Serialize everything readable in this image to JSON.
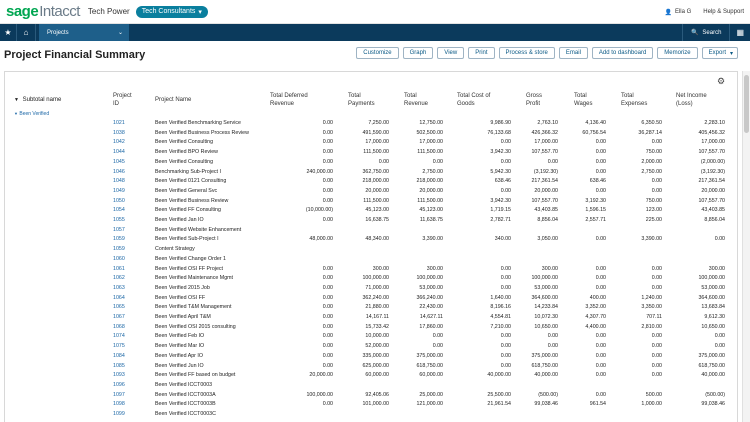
{
  "app": {
    "brand_main": "sage",
    "brand_sub": "Intacct",
    "company": "Tech Power",
    "entity": "Tech Consultants",
    "user": "Ella G",
    "help": "Help & Support"
  },
  "nav": {
    "module": "Projects",
    "search": "Search"
  },
  "page": {
    "title": "Project Financial Summary"
  },
  "toolbar": {
    "customize": "Customize",
    "graph": "Graph",
    "view": "View",
    "print": "Print",
    "process_store": "Process & store",
    "email": "Email",
    "add_dashboard": "Add to dashboard",
    "memorize": "Memorize",
    "export": "Export"
  },
  "report": {
    "subtotal_label": "Subtotal name",
    "group": "Been Verified",
    "headers": {
      "project_id": [
        "Project",
        "ID"
      ],
      "project_name": [
        "Project Name"
      ],
      "total_deferred_revenue": [
        "Total Deferred",
        "Revenue"
      ],
      "total_payments": [
        "Total",
        "Payments"
      ],
      "total_revenue": [
        "Total",
        "Revenue"
      ],
      "total_cost_of_goods": [
        "Total Cost of",
        "Goods"
      ],
      "gross_profit": [
        "Gross",
        "Profit"
      ],
      "total_wages": [
        "Total",
        "Wages"
      ],
      "total_expenses": [
        "Total",
        "Expenses"
      ],
      "net_income": [
        "Net Income",
        "(Loss)"
      ]
    },
    "rows": [
      [
        "1021",
        "Been Verified Benchmarking Service",
        "0.00",
        "7,250.00",
        "12,750.00",
        "9,986.90",
        "2,763.10",
        "4,136.40",
        "6,350.50",
        "2,283.10"
      ],
      [
        "1038",
        "Been Verified Business Process Review",
        "0.00",
        "491,590.00",
        "502,500.00",
        "76,133.68",
        "426,366.32",
        "60,756.54",
        "36,287.14",
        "405,456.32"
      ],
      [
        "1042",
        "Been Verified Consulting",
        "0.00",
        "17,000.00",
        "17,000.00",
        "0.00",
        "17,000.00",
        "0.00",
        "0.00",
        "17,000.00"
      ],
      [
        "1044",
        "Been Verified BPO Review",
        "0.00",
        "111,500.00",
        "111,500.00",
        "3,942.30",
        "107,557.70",
        "0.00",
        "750.00",
        "107,557.70"
      ],
      [
        "1045",
        "Been Verified Consulting",
        "0.00",
        "0.00",
        "0.00",
        "0.00",
        "0.00",
        "0.00",
        "2,000.00",
        "(2,000.00)"
      ],
      [
        "1046",
        "Benchmarking Sub-Project I",
        "240,000.00",
        "362,750.00",
        "2,750.00",
        "5,942.30",
        "(3,192.30)",
        "0.00",
        "2,750.00",
        "(3,192.30)"
      ],
      [
        "1048",
        "Been Verified 0121 Consulting",
        "0.00",
        "218,000.00",
        "218,000.00",
        "638.46",
        "217,361.54",
        "638.46",
        "0.00",
        "217,361.54"
      ],
      [
        "1049",
        "Been Verified General Svc",
        "0.00",
        "20,000.00",
        "20,000.00",
        "0.00",
        "20,000.00",
        "0.00",
        "0.00",
        "20,000.00"
      ],
      [
        "1050",
        "Been Verified Business Review",
        "0.00",
        "111,500.00",
        "111,500.00",
        "3,942.30",
        "107,557.70",
        "3,192.30",
        "750.00",
        "107,557.70"
      ],
      [
        "1054",
        "Been Verified FF Consulting",
        "(10,000.00)",
        "45,123.00",
        "45,123.00",
        "1,719.15",
        "43,403.85",
        "1,596.15",
        "123.00",
        "43,403.85"
      ],
      [
        "1055",
        "Been Verified Jan IO",
        "0.00",
        "16,638.75",
        "11,638.75",
        "2,782.71",
        "8,856.04",
        "2,557.71",
        "225.00",
        "8,856.04"
      ],
      [
        "1057",
        "Been Verified Website Enhancement",
        "",
        "",
        "",
        "",
        "",
        "",
        "",
        ""
      ],
      [
        "1059",
        "Been Verified Sub-Project I",
        "48,000.00",
        "48,340.00",
        "3,390.00",
        "340.00",
        "3,050.00",
        "0.00",
        "3,390.00",
        "0.00"
      ],
      [
        "1059",
        "Content Strategy",
        "",
        "",
        "",
        "",
        "",
        "",
        "",
        ""
      ],
      [
        "1060",
        "Been Verified Change Order 1",
        "",
        "",
        "",
        "",
        "",
        "",
        "",
        ""
      ],
      [
        "1061",
        "Been Verified OSI FF Project",
        "0.00",
        "300.00",
        "300.00",
        "0.00",
        "300.00",
        "0.00",
        "0.00",
        "300.00"
      ],
      [
        "1062",
        "Been Verified Maintenance Mgmt",
        "0.00",
        "100,000.00",
        "100,000.00",
        "0.00",
        "100,000.00",
        "0.00",
        "0.00",
        "100,000.00"
      ],
      [
        "1063",
        "Been Verified 2015 Job",
        "0.00",
        "71,000.00",
        "53,000.00",
        "0.00",
        "53,000.00",
        "0.00",
        "0.00",
        "53,000.00"
      ],
      [
        "1064",
        "Been Verified OSI FF",
        "0.00",
        "362,240.00",
        "366,240.00",
        "1,640.00",
        "364,600.00",
        "400.00",
        "1,240.00",
        "364,600.00"
      ],
      [
        "1065",
        "Been Verified T&M Management",
        "0.00",
        "21,880.00",
        "22,430.00",
        "8,196.16",
        "14,233.84",
        "3,352.00",
        "3,350.00",
        "13,683.84"
      ],
      [
        "1067",
        "Been Verified April T&M",
        "0.00",
        "14,167.11",
        "14,627.11",
        "4,554.81",
        "10,072.30",
        "4,307.70",
        "707.11",
        "9,612.30"
      ],
      [
        "1068",
        "Been Verified OSI 2015 consulting",
        "0.00",
        "15,733.42",
        "17,860.00",
        "7,210.00",
        "10,650.00",
        "4,400.00",
        "2,810.00",
        "10,650.00"
      ],
      [
        "1074",
        "Been Verified Feb IO",
        "0.00",
        "10,000.00",
        "0.00",
        "0.00",
        "0.00",
        "0.00",
        "0.00",
        "0.00"
      ],
      [
        "1075",
        "Been Verified Mar IO",
        "0.00",
        "52,000.00",
        "0.00",
        "0.00",
        "0.00",
        "0.00",
        "0.00",
        "0.00"
      ],
      [
        "1084",
        "Been Verified Apr IO",
        "0.00",
        "335,000.00",
        "375,000.00",
        "0.00",
        "375,000.00",
        "0.00",
        "0.00",
        "375,000.00"
      ],
      [
        "1085",
        "Been Verified Jun IO",
        "0.00",
        "625,000.00",
        "618,750.00",
        "0.00",
        "618,750.00",
        "0.00",
        "0.00",
        "618,750.00"
      ],
      [
        "1093",
        "Been Verified FF based on budget",
        "20,000.00",
        "60,000.00",
        "60,000.00",
        "40,000.00",
        "40,000.00",
        "0.00",
        "0.00",
        "40,000.00"
      ],
      [
        "1096",
        "Been Verified ICCT0003",
        "",
        "",
        "",
        "",
        "",
        "",
        "",
        ""
      ],
      [
        "1097",
        "Been Verified ICCT0003A",
        "100,000.00",
        "92,405.06",
        "25,000.00",
        "25,500.00",
        "(500.00)",
        "0.00",
        "500.00",
        "(500.00)"
      ],
      [
        "1098",
        "Been Verified ICCT0003B",
        "0.00",
        "101,000.00",
        "121,000.00",
        "21,961.54",
        "99,038.46",
        "961.54",
        "1,000.00",
        "99,038.46"
      ],
      [
        "1099",
        "Been Verified ICCT0003C",
        "",
        "",
        "",
        "",
        "",
        "",
        "",
        ""
      ]
    ]
  }
}
